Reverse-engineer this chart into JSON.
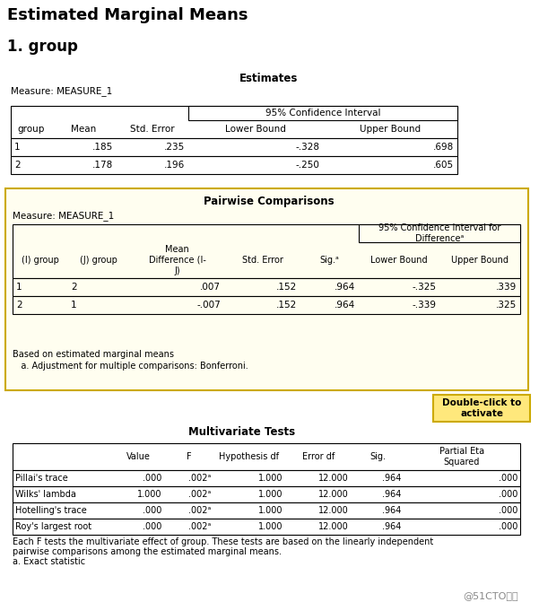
{
  "title": "Estimated Marginal Means",
  "subtitle": "1. group",
  "bg_color": "#ffffff",
  "table1_title": "Estimates",
  "table1_measure": "Measure: MEASURE_1",
  "table1_ci_header": "95% Confidence Interval",
  "table1_headers": [
    "group",
    "Mean",
    "Std. Error",
    "Lower Bound",
    "Upper Bound"
  ],
  "table1_rows": [
    [
      "1",
      ".185",
      ".235",
      "-.328",
      ".698"
    ],
    [
      "2",
      ".178",
      ".196",
      "-.250",
      ".605"
    ]
  ],
  "table2_title": "Pairwise Comparisons",
  "table2_measure": "Measure: MEASURE_1",
  "table2_ci_header": "95% Confidence Interval for\nDifferenceᵃ",
  "table2_headers_top": [
    "(I) group",
    "(J) group",
    "Mean\nDifference (I-\nJ)",
    "Std. Error",
    "Sig.ᵃ",
    "Lower Bound",
    "Upper Bound"
  ],
  "table2_rows": [
    [
      "1",
      "2",
      ".007",
      ".152",
      ".964",
      "-.325",
      ".339"
    ],
    [
      "2",
      "1",
      "-.007",
      ".152",
      ".964",
      "-.339",
      ".325"
    ]
  ],
  "table2_fn1": "Based on estimated marginal means",
  "table2_fn2": "   a. Adjustment for multiple comparisons: Bonferroni.",
  "double_click_label": "Double-click to\nactivate",
  "table3_title": "Multivariate Tests",
  "table3_headers": [
    "",
    "Value",
    "F",
    "Hypothesis df",
    "Error df",
    "Sig.",
    "Partial Eta\nSquared"
  ],
  "table3_rows": [
    [
      "Pillai's trace",
      ".000",
      ".002ᵃ",
      "1.000",
      "12.000",
      ".964",
      ".000"
    ],
    [
      "Wilks' lambda",
      "1.000",
      ".002ᵃ",
      "1.000",
      "12.000",
      ".964",
      ".000"
    ],
    [
      "Hotelling's trace",
      ".000",
      ".002ᵃ",
      "1.000",
      "12.000",
      ".964",
      ".000"
    ],
    [
      "Roy's largest root",
      ".000",
      ".002ᵃ",
      "1.000",
      "12.000",
      ".964",
      ".000"
    ]
  ],
  "table3_fn1": "Each F tests the multivariate effect of group. These tests are based on the linearly independent",
  "table3_fn2": "pairwise comparisons among the estimated marginal means.",
  "table3_fn3": "a. Exact statistic",
  "watermark": "@51CTO博客"
}
